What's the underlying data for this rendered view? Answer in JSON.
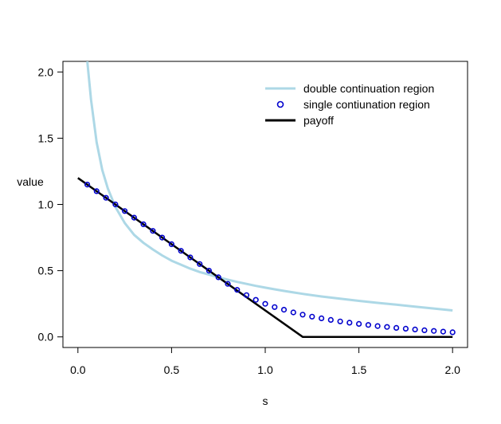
{
  "chart_data": {
    "type": "line",
    "title": "",
    "xlabel": "s",
    "ylabel": "value",
    "xlim": [
      -0.08,
      2.08
    ],
    "ylim": [
      -0.08,
      2.08
    ],
    "xticks": [
      "0.0",
      "0.5",
      "1.0",
      "1.5",
      "2.0"
    ],
    "yticks": [
      "0.0",
      "0.5",
      "1.0",
      "1.5",
      "2.0"
    ],
    "grid": false,
    "legend_position": "top-right",
    "colors": {
      "double": "#add8e6",
      "single": "#0000cd",
      "payoff": "#000000"
    },
    "series": [
      {
        "name": "double continuation region",
        "style": "line",
        "x": [
          0.05,
          0.07,
          0.1,
          0.13,
          0.16,
          0.2,
          0.25,
          0.3,
          0.35,
          0.4,
          0.45,
          0.5,
          0.55,
          0.6,
          0.65,
          0.7,
          0.75,
          0.8,
          0.85,
          0.9,
          0.95,
          1.0,
          1.05,
          1.1,
          1.15,
          1.2,
          1.3,
          1.4,
          1.5,
          1.6,
          1.7,
          1.8,
          1.9,
          2.0
        ],
        "y": [
          2.08,
          1.79,
          1.47,
          1.26,
          1.12,
          0.98,
          0.86,
          0.77,
          0.71,
          0.66,
          0.615,
          0.575,
          0.545,
          0.515,
          0.49,
          0.47,
          0.45,
          0.432,
          0.415,
          0.4,
          0.385,
          0.372,
          0.359,
          0.347,
          0.336,
          0.325,
          0.305,
          0.288,
          0.272,
          0.257,
          0.243,
          0.228,
          0.214,
          0.2
        ]
      },
      {
        "name": "single contiunation region",
        "style": "points",
        "x": [
          0.05,
          0.1,
          0.15,
          0.2,
          0.25,
          0.3,
          0.35,
          0.4,
          0.45,
          0.5,
          0.55,
          0.6,
          0.65,
          0.7,
          0.75,
          0.8,
          0.85,
          0.9,
          0.95,
          1.0,
          1.05,
          1.1,
          1.15,
          1.2,
          1.25,
          1.3,
          1.35,
          1.4,
          1.45,
          1.5,
          1.55,
          1.6,
          1.65,
          1.7,
          1.75,
          1.8,
          1.85,
          1.9,
          1.95,
          2.0
        ],
        "y": [
          1.15,
          1.1,
          1.05,
          1.0,
          0.95,
          0.9,
          0.85,
          0.8,
          0.75,
          0.7,
          0.65,
          0.6,
          0.55,
          0.5,
          0.45,
          0.4,
          0.355,
          0.315,
          0.28,
          0.25,
          0.225,
          0.205,
          0.185,
          0.168,
          0.153,
          0.14,
          0.128,
          0.117,
          0.107,
          0.098,
          0.09,
          0.082,
          0.075,
          0.068,
          0.062,
          0.056,
          0.05,
          0.045,
          0.04,
          0.035
        ]
      },
      {
        "name": "payoff",
        "style": "line",
        "x": [
          0.0,
          1.2,
          2.0
        ],
        "y": [
          1.2,
          0.0,
          0.0
        ]
      }
    ]
  }
}
